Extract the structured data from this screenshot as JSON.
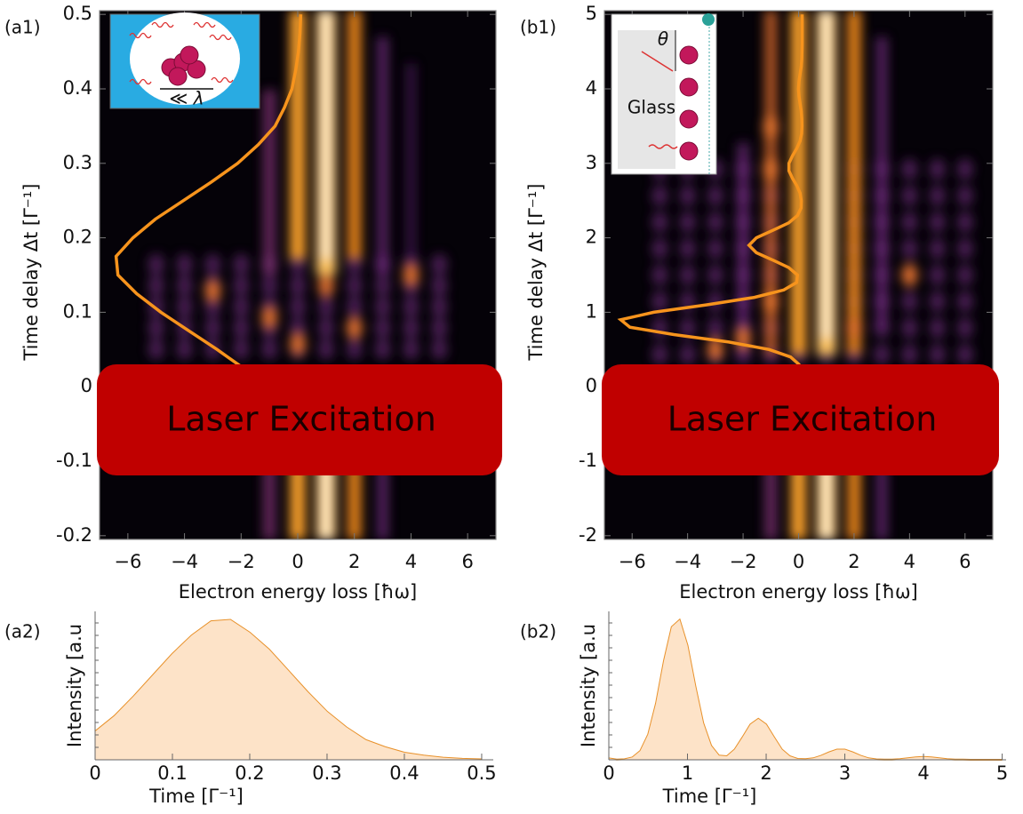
{
  "chart_data": [
    {
      "type": "heatmap",
      "panel_label": "(a1)",
      "x_label": "Electron energy loss [ħω]",
      "y_label": "Time delay Δt [Γ⁻¹]",
      "xlim": [
        -7,
        7
      ],
      "ylim": [
        -0.205,
        0.505
      ],
      "xticks": [
        {
          "value": -6,
          "label": "−6"
        },
        {
          "value": -4,
          "label": "−4"
        },
        {
          "value": -2,
          "label": "−2"
        },
        0,
        2,
        4,
        6
      ],
      "yticks": [
        -0.2,
        -0.1,
        0,
        0.1,
        0.2,
        0.3,
        0.4,
        0.5
      ],
      "annotation": "Laser Excitation",
      "inset_labels": [
        "≪ λ"
      ]
    },
    {
      "type": "heatmap",
      "panel_label": "(b1)",
      "x_label": "Electron energy loss [ħω]",
      "y_label": "Time delay Δt [Γ⁻¹]",
      "xlim": [
        -7,
        7
      ],
      "ylim": [
        -2.05,
        5.05
      ],
      "xticks": [
        {
          "value": -6,
          "label": "−6"
        },
        {
          "value": -4,
          "label": "−4"
        },
        {
          "value": -2,
          "label": "−2"
        },
        0,
        2,
        4,
        6
      ],
      "yticks": [
        -2,
        -1,
        0,
        1,
        2,
        3,
        4,
        5
      ],
      "annotation": "Laser Excitation",
      "inset_labels": [
        "θ",
        "Glass"
      ]
    },
    {
      "type": "area",
      "panel_label": "(a2)",
      "x_label": "Time [Γ⁻¹]",
      "y_label": "Intensity [a.u",
      "x": [
        0,
        0.025,
        0.05,
        0.075,
        0.1,
        0.125,
        0.15,
        0.175,
        0.2,
        0.225,
        0.25,
        0.275,
        0.3,
        0.325,
        0.35,
        0.375,
        0.4,
        0.425,
        0.45,
        0.475,
        0.5
      ],
      "values": [
        0.2,
        0.31,
        0.45,
        0.6,
        0.75,
        0.88,
        0.98,
        0.99,
        0.9,
        0.78,
        0.63,
        0.48,
        0.34,
        0.23,
        0.14,
        0.09,
        0.05,
        0.03,
        0.015,
        0.007,
        0.003
      ],
      "color": "#e8912a",
      "fill": "#fde3c8",
      "xlim": [
        0,
        0.515
      ],
      "ylim": [
        0,
        1.05
      ],
      "xticks": [
        0,
        0.1,
        0.2,
        0.3,
        0.4,
        0.5
      ]
    },
    {
      "type": "area",
      "panel_label": "(b2)",
      "x_label": "Time [Γ⁻¹]",
      "y_label": "Intensity [a.u",
      "x": [
        0,
        0.1,
        0.2,
        0.3,
        0.4,
        0.5,
        0.6,
        0.7,
        0.8,
        0.9,
        1,
        1.1,
        1.2,
        1.3,
        1.4,
        1.5,
        1.6,
        1.7,
        1.8,
        1.9,
        2,
        2.1,
        2.2,
        2.3,
        2.4,
        2.5,
        2.6,
        2.7,
        2.8,
        2.9,
        3,
        3.1,
        3.2,
        3.3,
        3.4,
        3.5,
        3.6,
        3.7,
        3.8,
        3.9,
        4,
        4.1,
        4.2,
        4.3,
        4.4,
        4.5,
        4.6,
        4.7,
        4.8,
        4.9,
        5
      ],
      "values": [
        0.01,
        0.001,
        0.004,
        0.017,
        0.063,
        0.18,
        0.4,
        0.7,
        0.94,
        0.99,
        0.81,
        0.52,
        0.26,
        0.1,
        0.03,
        0.025,
        0.073,
        0.16,
        0.25,
        0.29,
        0.25,
        0.16,
        0.073,
        0.025,
        0.006,
        0.005,
        0.011,
        0.029,
        0.053,
        0.072,
        0.072,
        0.053,
        0.029,
        0.011,
        0.003,
        0.001,
        0.002,
        0.005,
        0.011,
        0.017,
        0.02,
        0.017,
        0.011,
        0.005,
        0.002,
        0.001,
        0,
        0,
        0,
        0,
        0
      ],
      "color": "#e8912a",
      "fill": "#fde3c8",
      "xlim": [
        0,
        5.05
      ],
      "ylim": [
        0,
        1.05
      ],
      "xticks": [
        0,
        1,
        2,
        3,
        4,
        5
      ]
    }
  ]
}
